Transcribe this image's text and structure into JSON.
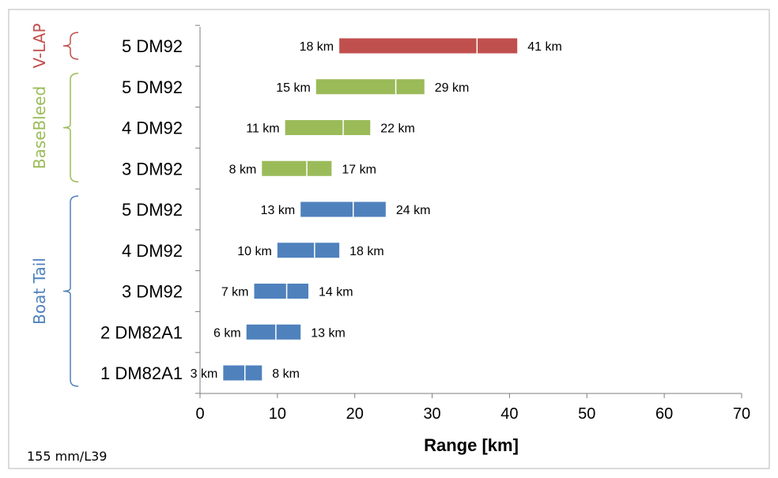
{
  "chart_data": {
    "type": "bar",
    "orientation": "horizontal-range",
    "xlabel": "Range [km]",
    "xlim": [
      0,
      70
    ],
    "xticks": [
      0,
      10,
      20,
      30,
      40,
      50,
      60,
      70
    ],
    "grid": false,
    "footnote": "155  mm/L39",
    "unit_suffix": " km",
    "categories": [
      "5 DM92",
      "5 DM92",
      "4 DM92",
      "3 DM92",
      "5 DM92",
      "4 DM92",
      "3 DM92",
      "2 DM82A1",
      "1 DM82A1"
    ],
    "bars": [
      {
        "label": "5 DM92",
        "group": "V-LAP",
        "min": 18,
        "max": 41,
        "min_label": "18 km",
        "max_label": "41 km",
        "marker": 35.8
      },
      {
        "label": "5 DM92",
        "group": "BaseBleed",
        "min": 15,
        "max": 29,
        "min_label": "15 km",
        "max_label": "29 km",
        "marker": 25.3
      },
      {
        "label": "4 DM92",
        "group": "BaseBleed",
        "min": 11,
        "max": 22,
        "min_label": "11 km",
        "max_label": "22 km",
        "marker": 18.5
      },
      {
        "label": "3 DM92",
        "group": "BaseBleed",
        "min": 8,
        "max": 17,
        "min_label": "8 km",
        "max_label": "17 km",
        "marker": 13.8
      },
      {
        "label": "5 DM92",
        "group": "Boat Tail",
        "min": 13,
        "max": 24,
        "min_label": "13 km",
        "max_label": "24 km",
        "marker": 19.8
      },
      {
        "label": "4 DM92",
        "group": "Boat Tail",
        "min": 10,
        "max": 18,
        "min_label": "10 km",
        "max_label": "18 km",
        "marker": 14.8
      },
      {
        "label": "3 DM92",
        "group": "Boat Tail",
        "min": 7,
        "max": 14,
        "min_label": "7 km",
        "max_label": "14 km",
        "marker": 11.2
      },
      {
        "label": "2 DM82A1",
        "group": "Boat Tail",
        "min": 6,
        "max": 13,
        "min_label": "6 km",
        "max_label": "13 km",
        "marker": 9.8
      },
      {
        "label": "1 DM82A1",
        "group": "Boat Tail",
        "min": 3,
        "max": 8,
        "min_label": "3 km",
        "max_label": "8 km",
        "marker": 5.8
      }
    ],
    "groups": [
      {
        "name": "V-LAP",
        "color": "#c0504d",
        "first": 0,
        "last": 0
      },
      {
        "name": "BaseBleed",
        "color": "#9bbb59",
        "first": 1,
        "last": 3
      },
      {
        "name": "Boat Tail",
        "color": "#4f81bd",
        "first": 4,
        "last": 8
      }
    ]
  }
}
